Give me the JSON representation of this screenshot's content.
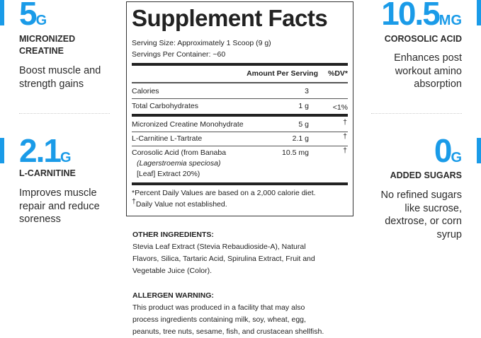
{
  "accent_color": "#1a9be8",
  "highlights": [
    {
      "amount": "5",
      "unit": "G",
      "label_lines": [
        "MICRONIZED",
        "CREATINE"
      ],
      "desc_lines": [
        "Boost muscle and",
        "strength gains"
      ]
    },
    {
      "amount": "2.1",
      "unit": "G",
      "label_lines": [
        "L-CARNITINE"
      ],
      "desc_lines": [
        "Improves muscle",
        "repair and reduce",
        "soreness"
      ]
    },
    {
      "amount": "10.5",
      "unit": "MG",
      "label_lines": [
        "COROSOLIC ACID"
      ],
      "desc_lines": [
        "Enhances post",
        "workout amino",
        "absorption"
      ]
    },
    {
      "amount": "0",
      "unit": "G",
      "label_lines": [
        "ADDED SUGARS"
      ],
      "desc_lines": [
        "No refined sugars",
        "like sucrose,",
        "dextrose, or corn",
        "syrup"
      ]
    }
  ],
  "facts": {
    "title": "Supplement Facts",
    "serving_size": "Serving Size: Approximately 1 Scoop (9 g)",
    "servings_per_container": "Servings Per Container: ~60",
    "header_amount": "Amount Per Serving",
    "header_dv": "%DV*",
    "rows": [
      {
        "name": "Calories",
        "amount": "3",
        "dv": ""
      },
      {
        "name": "Total Carbohydrates",
        "amount": "1 g",
        "dv": "<1%"
      },
      {
        "name": "Micronized Creatine Monohydrate",
        "amount": "5 g",
        "dv": "†"
      },
      {
        "name": "L-Carnitine L-Tartrate",
        "amount": "2.1 g",
        "dv": "†"
      },
      {
        "name": "Corosolic Acid (from Banaba",
        "name_line2": "(Lagerstroemia speciosa)",
        "name_line3": "[Leaf] Extract 20%)",
        "amount": "10.5 mg",
        "dv": "†"
      }
    ],
    "footnote_1": "*Percent Daily Values are based on a 2,000 calorie diet.",
    "footnote_2_mark": "†",
    "footnote_2": "Daily Value not established."
  },
  "other_ingredients": {
    "heading": "OTHER INGREDIENTS:",
    "lines": [
      "Stevia Leaf Extract (Stevia Rebaudioside-A), Natural",
      "Flavors, Silica, Tartaric Acid, Spirulina Extract, Fruit and",
      "Vegetable Juice (Color)."
    ]
  },
  "allergen_warning": {
    "heading": "ALLERGEN WARNING:",
    "lines": [
      "This product was produced in a facility that may also",
      "process ingredients containing milk, soy, wheat, egg,",
      "peanuts, tree nuts, sesame, fish, and crustacean shellfish."
    ]
  }
}
